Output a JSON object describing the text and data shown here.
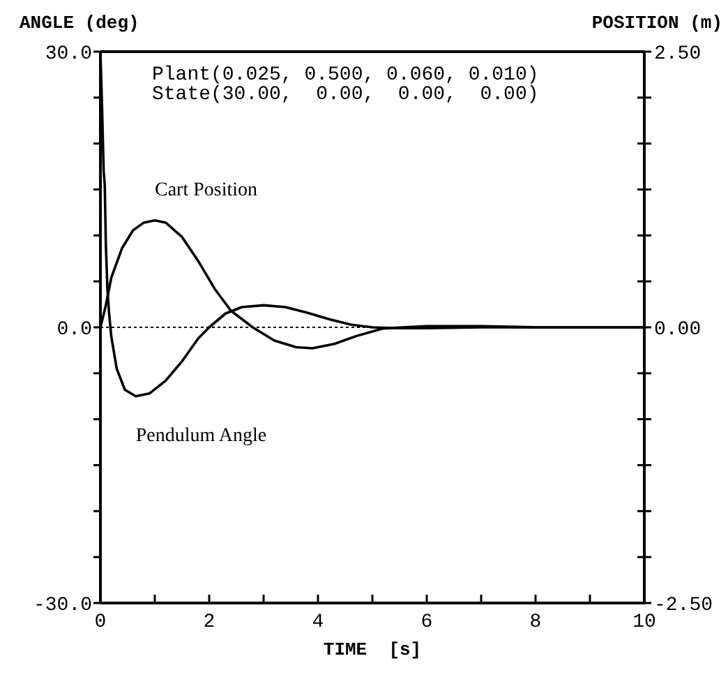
{
  "chart_data": {
    "type": "line",
    "ylabel": "ANGLE (deg)",
    "y2label": "POSITION (m)",
    "xlabel": "TIME  [s]",
    "annotations": [
      "Plant(0.025, 0.500, 0.060, 0.010)",
      "State(30.00,  0.00,  0.00,  0.00)",
      {
        "text": "Cart Position",
        "x": 1.0,
        "y": 11.6
      },
      {
        "text": "Pendulum Angle",
        "x": 0.65,
        "y": -7.5
      }
    ],
    "xlim": [
      0,
      10
    ],
    "xticks": [
      0,
      {
        "value": 1,
        "label": null
      },
      2,
      {
        "value": 3,
        "label": null
      },
      4,
      {
        "value": 5,
        "label": null
      },
      6,
      {
        "value": 7,
        "label": null
      },
      8,
      {
        "value": 9,
        "label": null
      },
      10
    ],
    "ylim": [
      -30,
      30
    ],
    "yticks": [
      {
        "value": -30,
        "label": "-30.0"
      },
      {
        "value": -25,
        "label": null
      },
      {
        "value": -20,
        "label": null
      },
      {
        "value": -15,
        "label": null
      },
      {
        "value": -10,
        "label": null
      },
      {
        "value": -5,
        "label": null
      },
      {
        "value": 0,
        "label": "0.0"
      },
      {
        "value": 5,
        "label": null
      },
      {
        "value": 10,
        "label": null
      },
      {
        "value": 15,
        "label": null
      },
      {
        "value": 20,
        "label": null
      },
      {
        "value": 25,
        "label": null
      },
      {
        "value": 30,
        "label": "30.0"
      }
    ],
    "y2lim": [
      -2.5,
      2.5
    ],
    "y2ticks": [
      {
        "value": -2.5,
        "label": "-2.50"
      },
      {
        "value": -2.0833,
        "label": null
      },
      {
        "value": -1.6667,
        "label": null
      },
      {
        "value": -1.25,
        "label": null
      },
      {
        "value": -0.8333,
        "label": null
      },
      {
        "value": -0.4167,
        "label": null
      },
      {
        "value": 0,
        "label": "0.00"
      },
      {
        "value": 0.4167,
        "label": null
      },
      {
        "value": 0.8333,
        "label": null
      },
      {
        "value": 1.25,
        "label": null
      },
      {
        "value": 1.6667,
        "label": null
      },
      {
        "value": 2.0833,
        "label": null
      },
      {
        "value": 2.5,
        "label": "2.50"
      }
    ],
    "ref_lines": [
      {
        "axis": "y",
        "value": 0,
        "line_style": "dotted",
        "color": "#000000"
      }
    ],
    "marker": "none",
    "series": [
      {
        "color": "#000000",
        "x": [
          0,
          0.03,
          0.06,
          0.08,
          0.1,
          0.13,
          0.16,
          0.2,
          0.3,
          0.45,
          0.65,
          0.9,
          1.2,
          1.5,
          1.8,
          2.0,
          2.3,
          2.6,
          3.0,
          3.4,
          3.8,
          4.2,
          4.6,
          5.0,
          5.5,
          6.0,
          7.0,
          8.0,
          10.0
        ],
        "values": [
          30,
          24,
          17,
          15.5,
          9,
          4,
          1.5,
          -1,
          -4.5,
          -6.8,
          -7.5,
          -7.2,
          -5.8,
          -3.7,
          -1.2,
          0,
          1.5,
          2.2,
          2.4,
          2.2,
          1.6,
          0.9,
          0.3,
          0,
          -0.1,
          -0.1,
          0,
          0,
          0
        ]
      },
      {
        "color": "#000000",
        "axis": "y2",
        "x": [
          0,
          0.05,
          0.1,
          0.2,
          0.4,
          0.6,
          0.8,
          1.0,
          1.2,
          1.5,
          1.8,
          2.1,
          2.4,
          2.8,
          3.2,
          3.6,
          3.9,
          4.3,
          4.7,
          5.2,
          6.0,
          7.0,
          8.0,
          10.0
        ],
        "values": [
          0,
          0.1,
          0.2,
          0.45,
          0.72,
          0.88,
          0.95,
          0.97,
          0.95,
          0.82,
          0.6,
          0.35,
          0.15,
          0,
          -0.12,
          -0.18,
          -0.19,
          -0.15,
          -0.08,
          -0.01,
          0.01,
          0.01,
          0,
          0
        ]
      }
    ]
  }
}
